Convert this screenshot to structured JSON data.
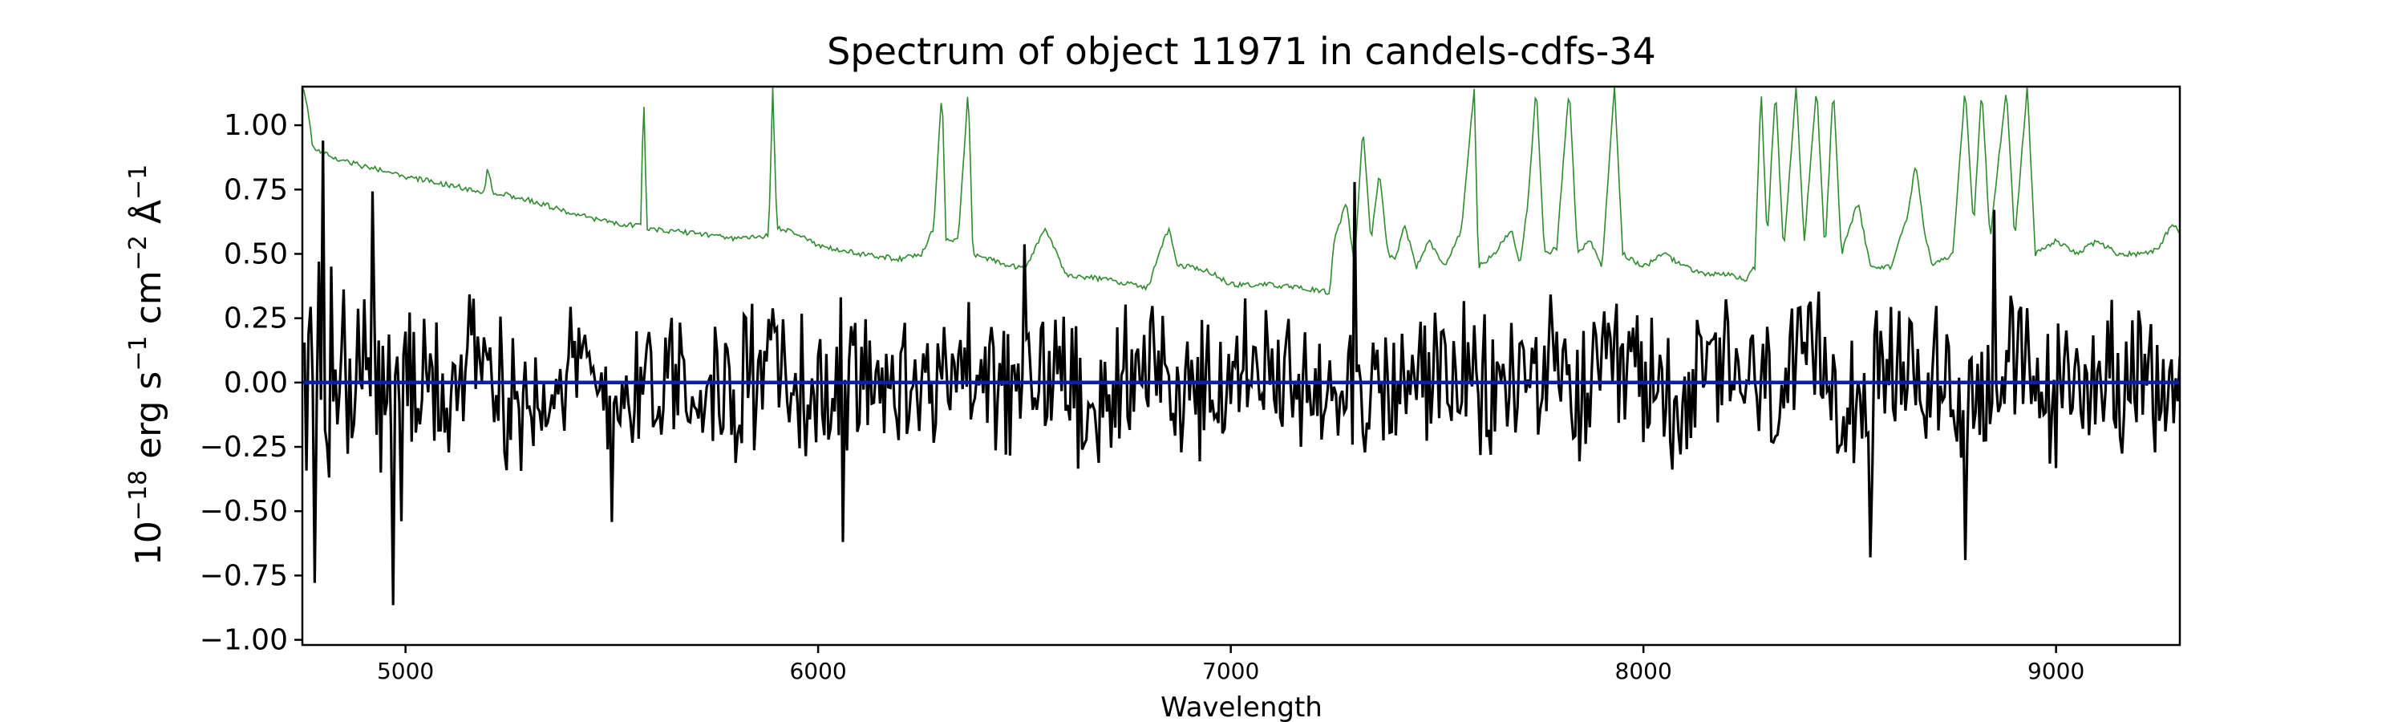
{
  "chart_data": {
    "type": "line",
    "title": "Spectrum of object 11971 in candels-cdfs-34",
    "xlabel": "Wavelength",
    "ylabel_parts": {
      "base": "10",
      "exp1": "−18",
      "erg": " erg s",
      "exp2": "−1",
      "cm": " cm",
      "exp3": "−2",
      "ang": " Å",
      "exp4": "−1"
    },
    "xlim": [
      4750,
      9300
    ],
    "ylim": [
      -1.02,
      1.15
    ],
    "x_ticks": [
      5000,
      6000,
      7000,
      8000,
      9000
    ],
    "x_tick_labels": [
      "5000",
      "6000",
      "7000",
      "8000",
      "9000"
    ],
    "y_ticks": [
      -1.0,
      -0.75,
      -0.5,
      -0.25,
      0.0,
      0.25,
      0.5,
      0.75,
      1.0
    ],
    "y_tick_labels": [
      "−1.00",
      "−0.75",
      "−0.50",
      "−0.25",
      "0.00",
      "0.25",
      "0.50",
      "0.75",
      "1.00"
    ],
    "grid": false,
    "series": [
      {
        "role": "noise",
        "color": "#2e8b2e",
        "points": [
          [
            4750,
            1.15
          ],
          [
            4760,
            1.1
          ],
          [
            4775,
            0.92
          ],
          [
            4800,
            0.89
          ],
          [
            4850,
            0.86
          ],
          [
            4900,
            0.84
          ],
          [
            5000,
            0.8
          ],
          [
            5100,
            0.77
          ],
          [
            5190,
            0.74
          ],
          [
            5200,
            0.84
          ],
          [
            5210,
            0.74
          ],
          [
            5300,
            0.71
          ],
          [
            5400,
            0.66
          ],
          [
            5500,
            0.62
          ],
          [
            5570,
            0.61
          ],
          [
            5577,
            1.15
          ],
          [
            5585,
            0.6
          ],
          [
            5700,
            0.58
          ],
          [
            5800,
            0.56
          ],
          [
            5880,
            0.57
          ],
          [
            5890,
            1.15
          ],
          [
            5900,
            0.6
          ],
          [
            5950,
            0.58
          ],
          [
            6000,
            0.53
          ],
          [
            6100,
            0.5
          ],
          [
            6200,
            0.48
          ],
          [
            6250,
            0.5
          ],
          [
            6280,
            0.6
          ],
          [
            6300,
            1.15
          ],
          [
            6310,
            0.55
          ],
          [
            6340,
            0.56
          ],
          [
            6364,
            1.15
          ],
          [
            6375,
            0.5
          ],
          [
            6450,
            0.46
          ],
          [
            6500,
            0.44
          ],
          [
            6550,
            0.6
          ],
          [
            6600,
            0.42
          ],
          [
            6700,
            0.4
          ],
          [
            6800,
            0.37
          ],
          [
            6830,
            0.52
          ],
          [
            6850,
            0.6
          ],
          [
            6870,
            0.45
          ],
          [
            6900,
            0.45
          ],
          [
            6950,
            0.43
          ],
          [
            7000,
            0.38
          ],
          [
            7100,
            0.38
          ],
          [
            7200,
            0.36
          ],
          [
            7240,
            0.35
          ],
          [
            7250,
            0.55
          ],
          [
            7280,
            0.7
          ],
          [
            7300,
            0.45
          ],
          [
            7320,
            1.0
          ],
          [
            7340,
            0.55
          ],
          [
            7360,
            0.82
          ],
          [
            7380,
            0.5
          ],
          [
            7400,
            0.48
          ],
          [
            7420,
            0.62
          ],
          [
            7450,
            0.45
          ],
          [
            7480,
            0.55
          ],
          [
            7520,
            0.45
          ],
          [
            7560,
            0.6
          ],
          [
            7590,
            1.15
          ],
          [
            7600,
            0.45
          ],
          [
            7640,
            0.5
          ],
          [
            7680,
            0.6
          ],
          [
            7700,
            0.45
          ],
          [
            7720,
            0.7
          ],
          [
            7740,
            1.15
          ],
          [
            7760,
            0.5
          ],
          [
            7790,
            0.52
          ],
          [
            7820,
            1.15
          ],
          [
            7840,
            0.5
          ],
          [
            7870,
            0.55
          ],
          [
            7900,
            0.45
          ],
          [
            7930,
            1.15
          ],
          [
            7950,
            0.5
          ],
          [
            8000,
            0.45
          ],
          [
            8050,
            0.5
          ],
          [
            8100,
            0.45
          ],
          [
            8150,
            0.42
          ],
          [
            8200,
            0.42
          ],
          [
            8250,
            0.4
          ],
          [
            8270,
            0.45
          ],
          [
            8285,
            1.15
          ],
          [
            8300,
            0.55
          ],
          [
            8320,
            1.15
          ],
          [
            8340,
            0.5
          ],
          [
            8370,
            1.15
          ],
          [
            8390,
            0.55
          ],
          [
            8420,
            1.15
          ],
          [
            8440,
            0.5
          ],
          [
            8460,
            1.15
          ],
          [
            8480,
            0.5
          ],
          [
            8520,
            0.7
          ],
          [
            8550,
            0.45
          ],
          [
            8600,
            0.45
          ],
          [
            8640,
            0.65
          ],
          [
            8660,
            0.85
          ],
          [
            8680,
            0.6
          ],
          [
            8700,
            0.45
          ],
          [
            8750,
            0.5
          ],
          [
            8780,
            1.15
          ],
          [
            8800,
            0.6
          ],
          [
            8820,
            1.15
          ],
          [
            8840,
            0.55
          ],
          [
            8880,
            1.15
          ],
          [
            8900,
            0.55
          ],
          [
            8930,
            1.15
          ],
          [
            8950,
            0.5
          ],
          [
            9000,
            0.55
          ],
          [
            9050,
            0.5
          ],
          [
            9100,
            0.55
          ],
          [
            9150,
            0.5
          ],
          [
            9200,
            0.5
          ],
          [
            9250,
            0.52
          ],
          [
            9280,
            0.62
          ],
          [
            9300,
            0.58
          ]
        ]
      },
      {
        "role": "flux",
        "color": "#000000",
        "amplitude": 0.25,
        "points": [
          [
            4750,
            0.1
          ],
          [
            4760,
            -0.35
          ],
          [
            4770,
            0.3
          ],
          [
            4780,
            -0.76
          ],
          [
            4790,
            0.5
          ],
          [
            4800,
            0.98
          ],
          [
            4810,
            -0.2
          ],
          [
            4820,
            0.5
          ],
          [
            4830,
            0.1
          ],
          [
            4850,
            0.4
          ],
          [
            4870,
            -0.2
          ],
          [
            4900,
            0.3
          ],
          [
            4920,
            0.7
          ],
          [
            4940,
            -0.4
          ],
          [
            4970,
            -0.9
          ],
          [
            4990,
            -0.55
          ],
          [
            5000,
            0.2
          ],
          [
            5500,
            -0.5
          ],
          [
            6060,
            -0.64
          ],
          [
            6500,
            0.55
          ],
          [
            7300,
            0.75
          ],
          [
            8550,
            -0.63
          ],
          [
            8780,
            -0.64
          ],
          [
            8850,
            0.65
          ],
          [
            9300,
            0.1
          ]
        ]
      },
      {
        "role": "model",
        "color": "#0b1fa8",
        "points": [
          [
            4750,
            0.0
          ],
          [
            9300,
            0.0
          ]
        ]
      }
    ]
  }
}
